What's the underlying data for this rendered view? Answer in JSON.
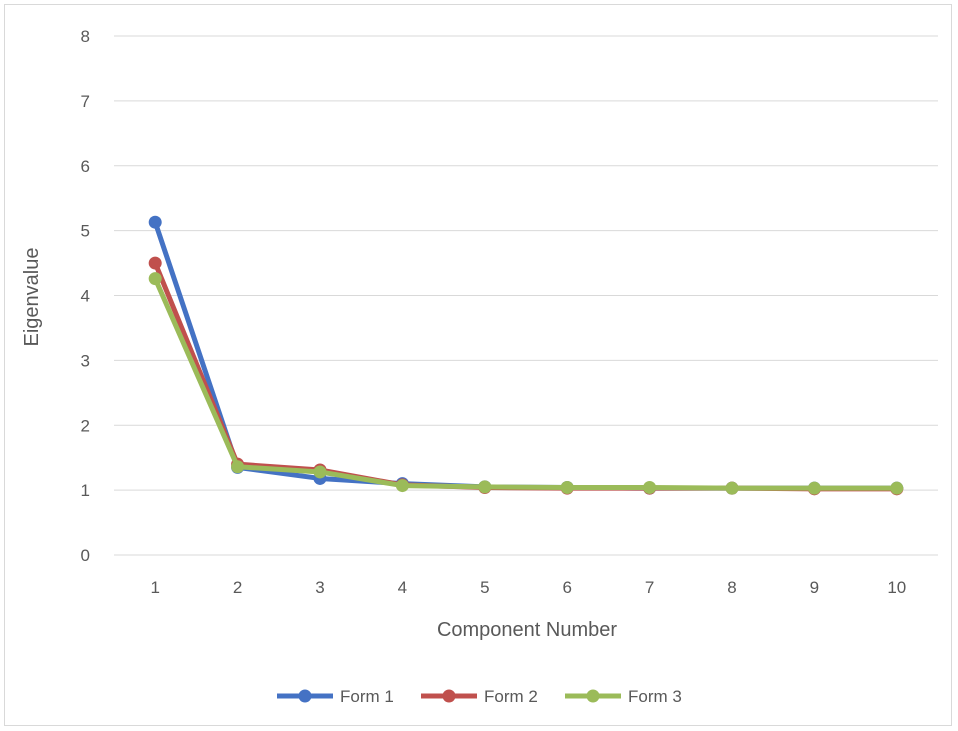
{
  "chart_data": {
    "type": "line",
    "title": "",
    "xlabel": "Component Number",
    "ylabel": "Eigenvalue",
    "categories": [
      "1",
      "2",
      "3",
      "4",
      "5",
      "6",
      "7",
      "8",
      "9",
      "10"
    ],
    "ylim": [
      0,
      8
    ],
    "yticks": [
      "0",
      "1",
      "2",
      "3",
      "4",
      "5",
      "6",
      "7",
      "8"
    ],
    "grid": true,
    "legend_position": "bottom",
    "series": [
      {
        "name": "Form 1",
        "color": "#4472c4",
        "values": [
          5.13,
          1.35,
          1.18,
          1.1,
          1.05,
          1.04,
          1.03,
          1.03,
          1.03,
          1.03
        ]
      },
      {
        "name": "Form 2",
        "color": "#c0504d",
        "values": [
          4.5,
          1.4,
          1.31,
          1.08,
          1.04,
          1.03,
          1.03,
          1.03,
          1.02,
          1.02
        ]
      },
      {
        "name": "Form 3",
        "color": "#9bbb59",
        "values": [
          4.26,
          1.36,
          1.28,
          1.07,
          1.05,
          1.04,
          1.04,
          1.03,
          1.03,
          1.03
        ]
      }
    ]
  }
}
